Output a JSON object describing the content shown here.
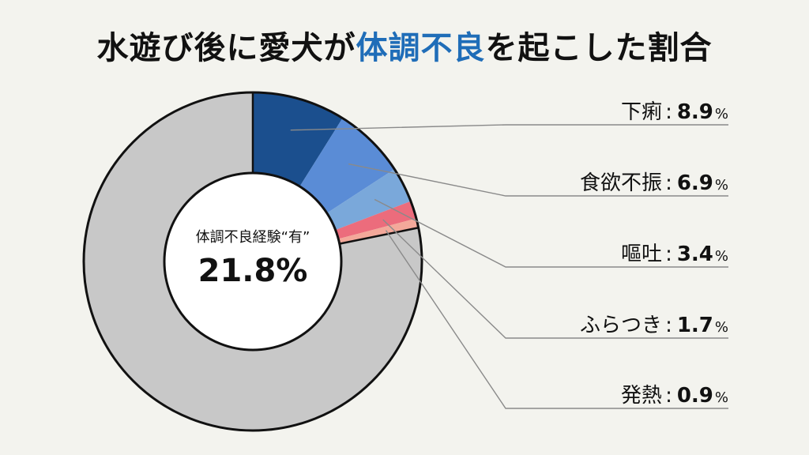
{
  "title": {
    "prefix": "水遊び後に愛犬が",
    "highlight": "体調不良",
    "suffix": "を起こした割合"
  },
  "colors": {
    "highlight": "#1f6db8",
    "background": "#f3f3ee",
    "none": "#c8c8c8"
  },
  "center": {
    "label": "体調不良経験“有”",
    "value": "21.8%"
  },
  "chart_data": {
    "type": "pie",
    "style": "donut",
    "title": "水遊び後に愛犬が体調不良を起こした割合",
    "total_affected": 21.8,
    "unit": "%",
    "slices": [
      {
        "label": "下痢",
        "value": 8.9,
        "color": "#1b4f8e"
      },
      {
        "label": "食欲不振",
        "value": 6.9,
        "color": "#5a8cd6"
      },
      {
        "label": "嘔吐",
        "value": 3.4,
        "color": "#7aa8da"
      },
      {
        "label": "ふらつき",
        "value": 1.7,
        "color": "#ec6c7c"
      },
      {
        "label": "発熱",
        "value": 0.9,
        "color": "#f3a89a"
      },
      {
        "label": "",
        "value": 78.2,
        "color": "#c8c8c8"
      }
    ]
  },
  "legend": [
    {
      "name": "下痢",
      "sep": ":",
      "value": "8.9",
      "unit": "%"
    },
    {
      "name": "食欲不振",
      "sep": ":",
      "value": "6.9",
      "unit": "%"
    },
    {
      "name": "嘔吐",
      "sep": ":",
      "value": "3.4",
      "unit": "%"
    },
    {
      "name": "ふらつき",
      "sep": ":",
      "value": "1.7",
      "unit": "%"
    },
    {
      "name": "発熱",
      "sep": ":",
      "value": "0.9",
      "unit": "%"
    }
  ]
}
